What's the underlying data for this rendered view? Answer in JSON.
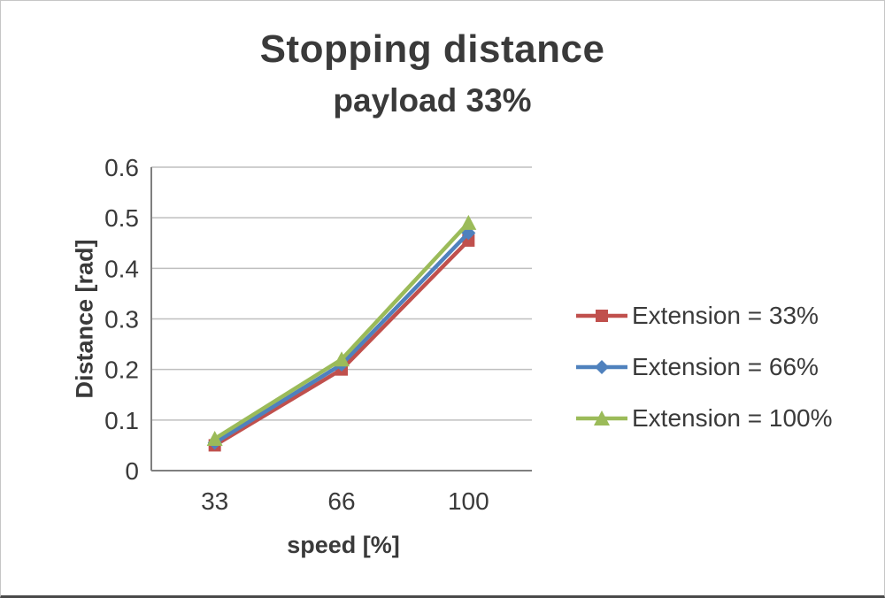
{
  "chart_data": {
    "type": "line",
    "title": "Stopping distance",
    "subtitle": "payload 33%",
    "xlabel": "speed [%]",
    "ylabel": "Distance [rad]",
    "categories": [
      "33",
      "66",
      "100"
    ],
    "series": [
      {
        "name": "Extension = 33%",
        "marker": "square",
        "color": "#C0504D",
        "values": [
          0.05,
          0.2,
          0.455
        ]
      },
      {
        "name": "Extension = 66%",
        "marker": "diamond",
        "color": "#4F81BD",
        "values": [
          0.055,
          0.21,
          0.47
        ]
      },
      {
        "name": "Extension = 100%",
        "marker": "triangle",
        "color": "#9BBB59",
        "values": [
          0.063,
          0.22,
          0.49
        ]
      }
    ],
    "ylim": [
      0,
      0.6
    ],
    "ytick_step": 0.1,
    "ytick_labels": [
      "0",
      "0.1",
      "0.2",
      "0.3",
      "0.4",
      "0.5",
      "0.6"
    ],
    "grid": true,
    "legend_position": "right"
  },
  "colors": {
    "text": "#3a3a3a",
    "axis": "#7f7f7f",
    "grid": "#bfbfbf",
    "frame": "#c6c6c6"
  }
}
